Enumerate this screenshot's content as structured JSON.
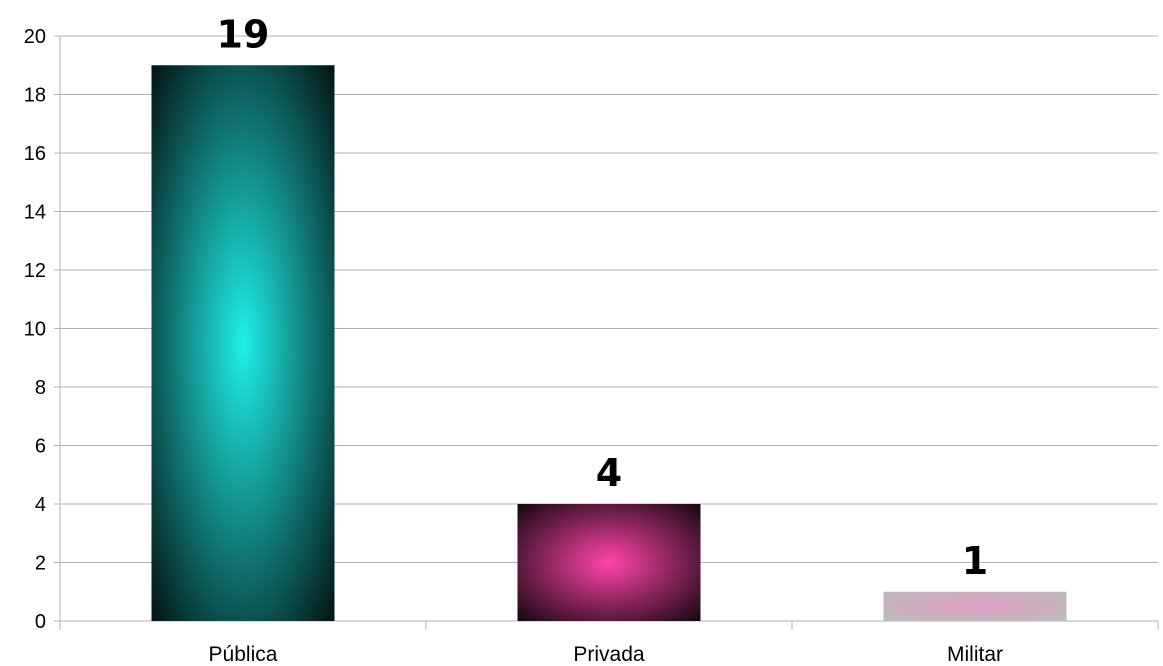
{
  "chart_data": {
    "type": "bar",
    "categories": [
      "Pública",
      "Privada",
      "Militar"
    ],
    "values": [
      19,
      4,
      1
    ],
    "data_labels": [
      "19",
      "4",
      "1"
    ],
    "ylim": [
      0,
      20
    ],
    "yticks": [
      0,
      2,
      4,
      6,
      8,
      10,
      12,
      14,
      16,
      18,
      20
    ],
    "grid": true,
    "legend": "none",
    "title": "",
    "xlabel": "",
    "ylabel": "",
    "bar_fills": [
      {
        "center": "#1ff0e8",
        "edge": "#031414"
      },
      {
        "center": "#ff44a8",
        "edge": "#150710"
      },
      {
        "center": "#e0a0c4",
        "edge": "#bcbcbc"
      }
    ]
  }
}
